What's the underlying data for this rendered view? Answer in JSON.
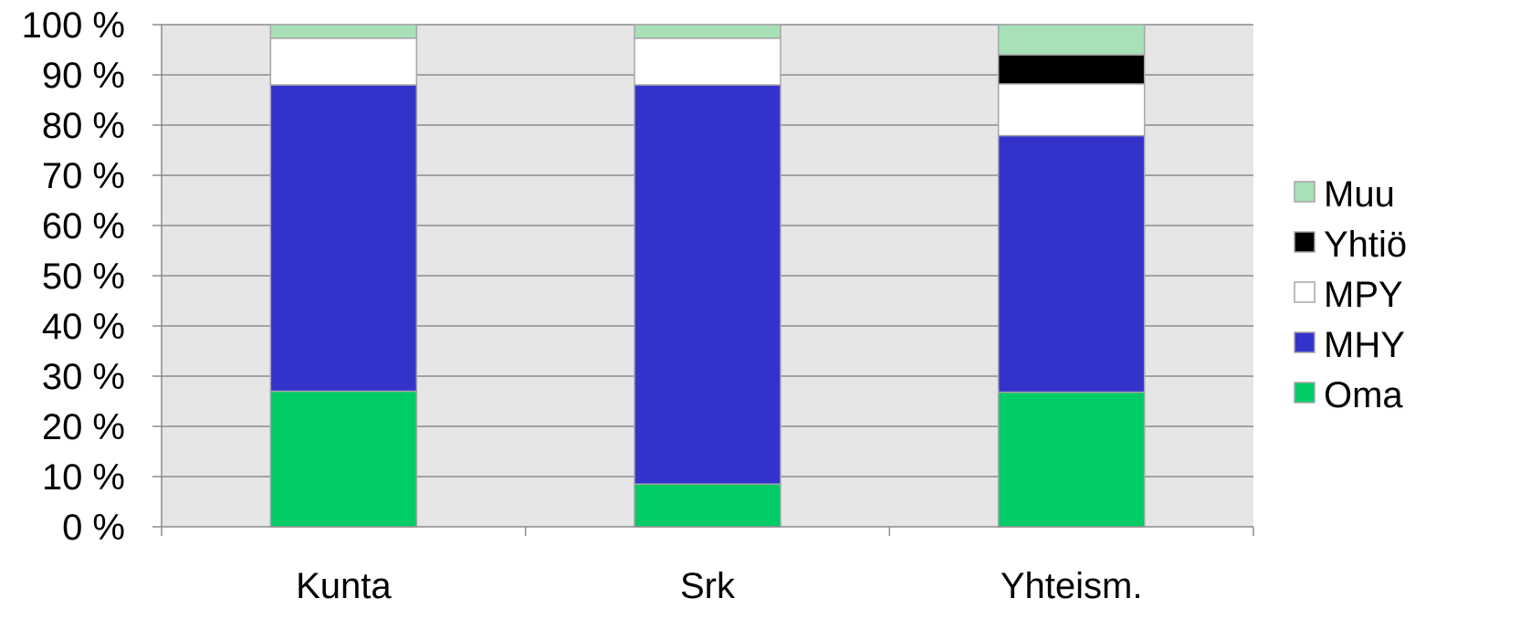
{
  "chart_data": {
    "type": "bar",
    "stacked": true,
    "percent": true,
    "categories": [
      "Kunta",
      "Srk",
      "Yhteism."
    ],
    "series": [
      {
        "name": "Oma",
        "values": [
          27,
          8.5,
          26.8
        ],
        "color": "#00CC66"
      },
      {
        "name": "MHY",
        "values": [
          61,
          79.5,
          51.1
        ],
        "color": "#3333CC"
      },
      {
        "name": "MPY",
        "values": [
          9.3,
          9.3,
          10.3
        ],
        "color": "#FFFFFF"
      },
      {
        "name": "Yhtiö",
        "values": [
          0,
          0,
          5.8
        ],
        "color": "#000000"
      },
      {
        "name": "Muu",
        "values": [
          2.7,
          2.7,
          6.0
        ],
        "color": "#A8E0B8"
      }
    ],
    "legend_order": [
      "Muu",
      "Yhtiö",
      "MPY",
      "MHY",
      "Oma"
    ],
    "y_ticks": [
      "0 %",
      "10 %",
      "20 %",
      "30 %",
      "40 %",
      "50 %",
      "60 %",
      "70 %",
      "80 %",
      "90 %",
      "100 %"
    ],
    "ylim": [
      0,
      100
    ],
    "grid": true,
    "legend_position": "right",
    "plot_background": "#E6E6E6"
  }
}
